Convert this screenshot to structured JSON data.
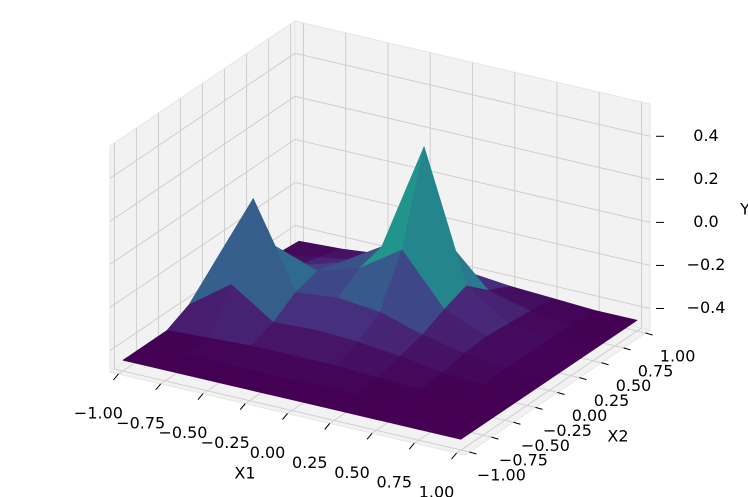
{
  "chart_data": {
    "type": "surface",
    "xlabel": "X1",
    "ylabel": "X2",
    "zlabel": "Y",
    "x": [
      -1,
      -0.75,
      -0.5,
      -0.25,
      0,
      0.25,
      0.5,
      0.75,
      1
    ],
    "y": [
      -1,
      -0.75,
      -0.5,
      -0.25,
      0,
      0.25,
      0.5,
      0.75,
      1
    ],
    "z": [
      [
        -0.45,
        -0.45,
        -0.45,
        -0.45,
        -0.45,
        -0.45,
        -0.45,
        -0.45,
        -0.45
      ],
      [
        -0.45,
        -0.45,
        -0.45,
        -0.45,
        -0.45,
        -0.45,
        -0.45,
        -0.45,
        -0.45
      ],
      [
        -0.45,
        -0.44,
        -0.43,
        -0.43,
        -0.43,
        -0.44,
        -0.45,
        -0.45,
        -0.45
      ],
      [
        -0.4,
        -0.26,
        -0.39,
        -0.38,
        -0.39,
        -0.41,
        -0.44,
        -0.45,
        -0.45
      ],
      [
        -0.3,
        0.07,
        -0.32,
        -0.3,
        -0.32,
        -0.38,
        -0.42,
        -0.44,
        -0.45
      ],
      [
        -0.38,
        -0.22,
        -0.29,
        -0.23,
        -0.1,
        -0.33,
        -0.41,
        -0.44,
        -0.45
      ],
      [
        -0.43,
        -0.38,
        -0.32,
        -0.2,
        0.31,
        -0.29,
        -0.42,
        -0.44,
        -0.45
      ],
      [
        -0.44,
        -0.41,
        -0.38,
        -0.33,
        -0.19,
        -0.38,
        -0.43,
        -0.45,
        -0.45
      ],
      [
        -0.45,
        -0.44,
        -0.42,
        -0.41,
        -0.41,
        -0.43,
        -0.44,
        -0.45,
        -0.45
      ]
    ],
    "colormap": "viridis",
    "xlim": [
      -1.05,
      1.05
    ],
    "ylim": [
      -1.05,
      1.05
    ],
    "zlim": [
      -0.5,
      0.55
    ],
    "xticks": [
      {
        "value": -1,
        "label": "−1.00"
      },
      {
        "value": -0.75,
        "label": "−0.75"
      },
      {
        "value": -0.5,
        "label": "−0.50"
      },
      {
        "value": -0.25,
        "label": "−0.25"
      },
      {
        "value": 0,
        "label": "0.00"
      },
      0.25,
      {
        "value": 0.5,
        "label": "0.50"
      },
      0.75,
      {
        "value": 1,
        "label": "1.00"
      }
    ],
    "yticks": [
      {
        "value": -1,
        "label": "−1.00"
      },
      {
        "value": -0.75,
        "label": "−0.75"
      },
      {
        "value": -0.5,
        "label": "−0.50"
      },
      {
        "value": -0.25,
        "label": "−0.25"
      },
      {
        "value": 0,
        "label": "0.00"
      },
      0.25,
      {
        "value": 0.5,
        "label": "0.50"
      },
      0.75,
      {
        "value": 1,
        "label": "1.00"
      }
    ],
    "zticks": [
      {
        "value": -0.4,
        "label": "−0.4"
      },
      {
        "value": -0.2,
        "label": "−0.2"
      },
      {
        "value": 0,
        "label": "0.0"
      },
      0.2,
      0.4
    ],
    "grid": true
  }
}
